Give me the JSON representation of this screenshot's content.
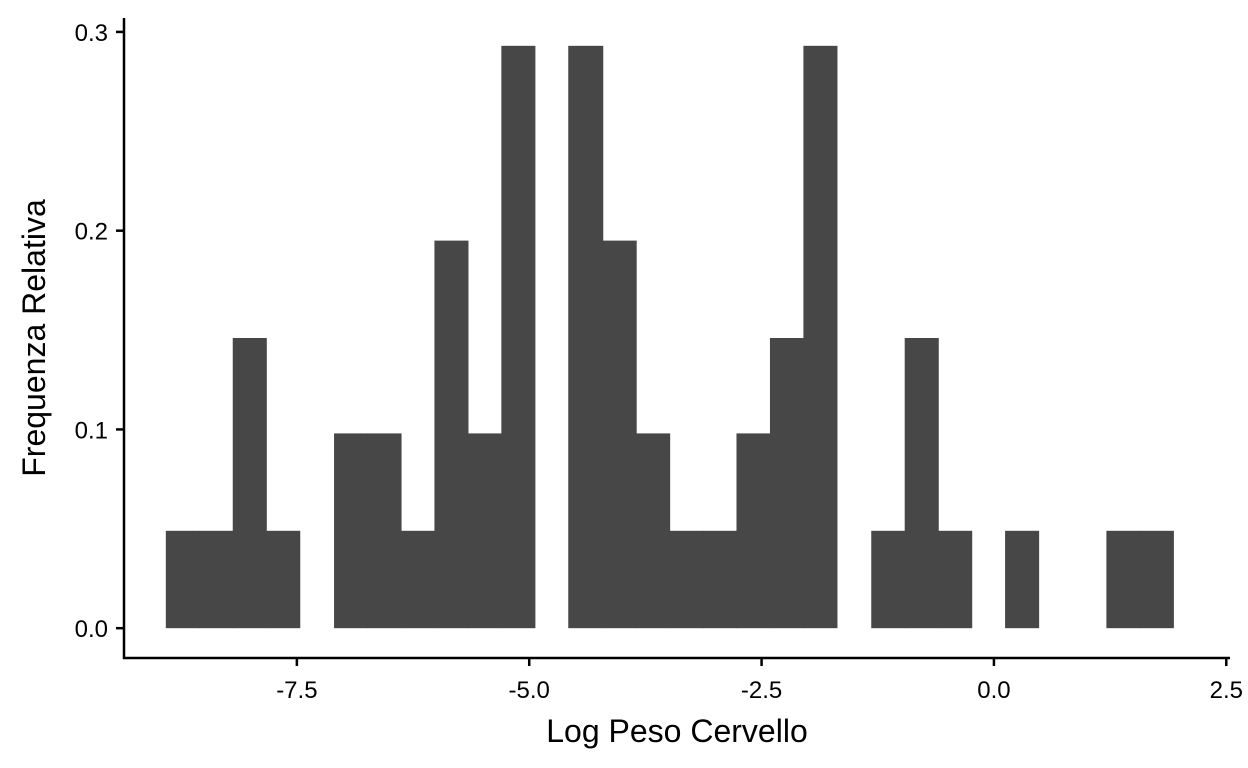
{
  "chart_data": {
    "type": "bar",
    "title": "",
    "xlabel": "Log Peso Cervello",
    "ylabel": "Frequenza Relativa",
    "bar_color": "#474747",
    "xlim": [
      -9.36,
      2.54
    ],
    "ylim": [
      -0.015,
      0.307
    ],
    "x_ticks": [
      -7.5,
      -5.0,
      -2.5,
      0.0,
      2.5
    ],
    "x_tick_labels": [
      "-7.5",
      "-5.0",
      "-2.5",
      "0.0",
      "2.5"
    ],
    "y_ticks": [
      0.0,
      0.1,
      0.2,
      0.3
    ],
    "y_tick_labels": [
      "0.0",
      "0.1",
      "0.2",
      "0.3"
    ],
    "grid": false,
    "bins": [
      {
        "x0": -8.91,
        "x1": -8.55,
        "value": 0.049
      },
      {
        "x0": -8.55,
        "x1": -8.19,
        "value": 0.049
      },
      {
        "x0": -8.19,
        "x1": -7.83,
        "value": 0.146
      },
      {
        "x0": -7.83,
        "x1": -7.47,
        "value": 0.049
      },
      {
        "x0": -7.47,
        "x1": -7.1,
        "value": 0.0
      },
      {
        "x0": -7.1,
        "x1": -6.74,
        "value": 0.098
      },
      {
        "x0": -6.74,
        "x1": -6.38,
        "value": 0.098
      },
      {
        "x0": -6.38,
        "x1": -6.02,
        "value": 0.049
      },
      {
        "x0": -6.02,
        "x1": -5.66,
        "value": 0.195
      },
      {
        "x0": -5.66,
        "x1": -5.3,
        "value": 0.098
      },
      {
        "x0": -5.3,
        "x1": -4.94,
        "value": 0.293
      },
      {
        "x0": -4.94,
        "x1": -4.58,
        "value": 0.0
      },
      {
        "x0": -4.58,
        "x1": -4.21,
        "value": 0.293
      },
      {
        "x0": -4.21,
        "x1": -3.85,
        "value": 0.195
      },
      {
        "x0": -3.85,
        "x1": -3.49,
        "value": 0.098
      },
      {
        "x0": -3.49,
        "x1": -3.13,
        "value": 0.049
      },
      {
        "x0": -3.13,
        "x1": -2.77,
        "value": 0.049
      },
      {
        "x0": -2.77,
        "x1": -2.41,
        "value": 0.098
      },
      {
        "x0": -2.41,
        "x1": -2.05,
        "value": 0.146
      },
      {
        "x0": -2.05,
        "x1": -1.69,
        "value": 0.293
      },
      {
        "x0": -1.69,
        "x1": -1.32,
        "value": 0.0
      },
      {
        "x0": -1.32,
        "x1": -0.96,
        "value": 0.049
      },
      {
        "x0": -0.96,
        "x1": -0.6,
        "value": 0.146
      },
      {
        "x0": -0.6,
        "x1": -0.24,
        "value": 0.049
      },
      {
        "x0": -0.24,
        "x1": 0.12,
        "value": 0.0
      },
      {
        "x0": 0.12,
        "x1": 0.48,
        "value": 0.049
      },
      {
        "x0": 0.48,
        "x1": 0.84,
        "value": 0.0
      },
      {
        "x0": 0.84,
        "x1": 1.21,
        "value": 0.0
      },
      {
        "x0": 1.21,
        "x1": 1.57,
        "value": 0.049
      },
      {
        "x0": 1.57,
        "x1": 1.93,
        "value": 0.049
      }
    ]
  }
}
